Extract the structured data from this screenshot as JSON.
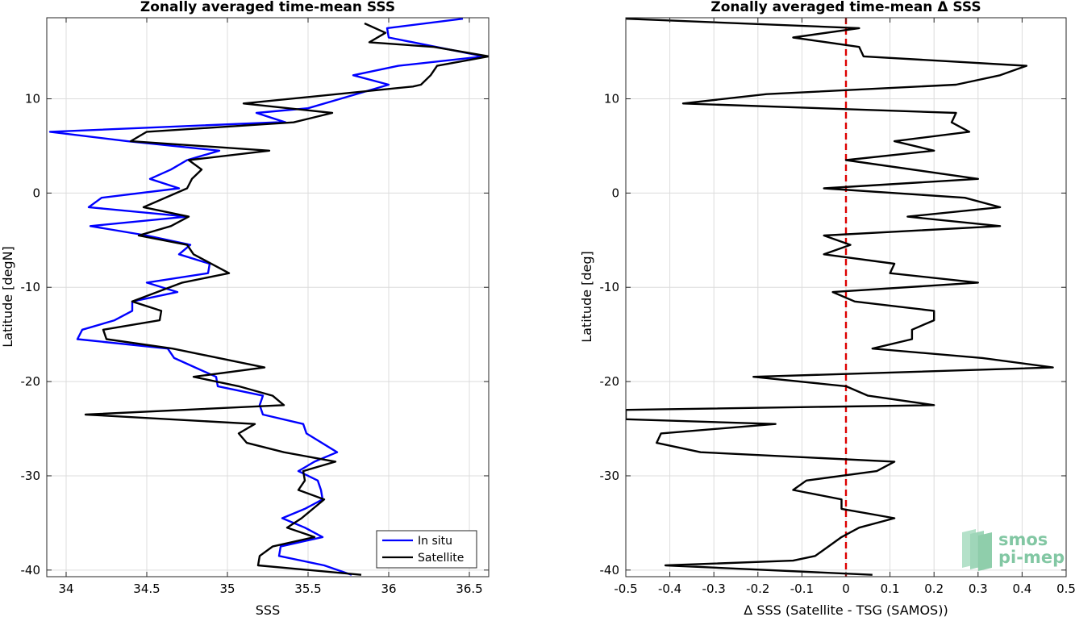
{
  "chart_data": [
    {
      "type": "line",
      "title": "Zonally averaged time-mean SSS",
      "xlabel": "SSS",
      "ylabel": "Latitude [degN]",
      "xlim": [
        33.88,
        36.62
      ],
      "ylim": [
        -40.7,
        18.6
      ],
      "xticks": [
        34,
        34.5,
        35,
        35.5,
        36,
        36.5
      ],
      "xtick_labels": [
        "34",
        "34.5",
        "35",
        "35.5",
        "36",
        "36.5"
      ],
      "yticks": [
        10,
        0,
        -10,
        -20,
        -30,
        -40
      ],
      "ytick_labels": [
        "10",
        "0",
        "-10",
        "-20",
        "-30",
        "-40"
      ],
      "grid": true,
      "legend_position": "bottom-right",
      "series": [
        {
          "name": "In situ",
          "color": "#0000ff",
          "points": [
            [
              36.46,
              18.5
            ],
            [
              35.99,
              17.5
            ],
            [
              36.0,
              16.5
            ],
            [
              36.59,
              14.5
            ],
            [
              36.06,
              13.5
            ],
            [
              35.78,
              12.5
            ],
            [
              36.0,
              11.5
            ],
            [
              35.5,
              9.0
            ],
            [
              35.18,
              8.5
            ],
            [
              35.36,
              7.5
            ],
            [
              35.3,
              7.5
            ],
            [
              33.9,
              6.5
            ],
            [
              34.38,
              5.5
            ],
            [
              34.95,
              4.5
            ],
            [
              34.75,
              3.5
            ],
            [
              34.65,
              2.5
            ],
            [
              34.52,
              1.5
            ],
            [
              34.7,
              0.5
            ],
            [
              34.22,
              -0.5
            ],
            [
              34.14,
              -1.5
            ],
            [
              34.75,
              -2.5
            ],
            [
              34.15,
              -3.5
            ],
            [
              34.5,
              -4.5
            ],
            [
              34.77,
              -5.5
            ],
            [
              34.7,
              -6.5
            ],
            [
              34.89,
              -7.5
            ],
            [
              34.88,
              -8.5
            ],
            [
              34.5,
              -9.5
            ],
            [
              34.69,
              -10.5
            ],
            [
              34.41,
              -11.5
            ],
            [
              34.41,
              -12.5
            ],
            [
              34.3,
              -13.5
            ],
            [
              34.1,
              -14.5
            ],
            [
              34.07,
              -15.5
            ],
            [
              34.63,
              -16.5
            ],
            [
              34.67,
              -17.5
            ],
            [
              34.8,
              -18.5
            ],
            [
              34.93,
              -19.5
            ],
            [
              34.94,
              -20.5
            ],
            [
              35.22,
              -21.5
            ],
            [
              35.2,
              -22.5
            ],
            [
              35.22,
              -23.5
            ],
            [
              35.47,
              -24.5
            ],
            [
              35.49,
              -25.5
            ],
            [
              35.68,
              -27.5
            ],
            [
              35.54,
              -28.5
            ],
            [
              35.44,
              -29.5
            ],
            [
              35.56,
              -30.5
            ],
            [
              35.58,
              -31.5
            ],
            [
              35.59,
              -32.5
            ],
            [
              35.48,
              -33.5
            ],
            [
              35.34,
              -34.5
            ],
            [
              35.48,
              -35.5
            ],
            [
              35.59,
              -36.5
            ],
            [
              35.33,
              -37.5
            ],
            [
              35.32,
              -38.5
            ],
            [
              35.6,
              -39.5
            ],
            [
              35.77,
              -40.5
            ]
          ]
        },
        {
          "name": "Satellite",
          "color": "#000000",
          "points": [
            [
              35.85,
              18.0
            ],
            [
              35.98,
              17.0
            ],
            [
              35.88,
              16.0
            ],
            [
              36.28,
              15.5
            ],
            [
              36.62,
              14.5
            ],
            [
              36.3,
              13.5
            ],
            [
              36.26,
              12.5
            ],
            [
              36.2,
              11.5
            ],
            [
              36.15,
              11.3
            ],
            [
              35.1,
              9.5
            ],
            [
              35.65,
              8.5
            ],
            [
              35.41,
              7.5
            ],
            [
              34.5,
              6.5
            ],
            [
              34.4,
              5.5
            ],
            [
              35.26,
              4.5
            ],
            [
              34.76,
              3.5
            ],
            [
              34.84,
              2.5
            ],
            [
              34.78,
              1.5
            ],
            [
              34.75,
              0.5
            ],
            [
              34.48,
              -1.5
            ],
            [
              34.76,
              -2.5
            ],
            [
              34.65,
              -3.5
            ],
            [
              34.45,
              -4.5
            ],
            [
              34.75,
              -5.5
            ],
            [
              34.79,
              -6.5
            ],
            [
              35.01,
              -8.5
            ],
            [
              34.72,
              -9.5
            ],
            [
              34.41,
              -11.5
            ],
            [
              34.59,
              -12.5
            ],
            [
              34.58,
              -13.5
            ],
            [
              34.23,
              -14.5
            ],
            [
              34.25,
              -15.5
            ],
            [
              34.66,
              -16.5
            ],
            [
              35.23,
              -18.5
            ],
            [
              34.79,
              -19.5
            ],
            [
              35.07,
              -20.5
            ],
            [
              35.28,
              -21.5
            ],
            [
              35.35,
              -22.5
            ],
            [
              34.12,
              -23.5
            ],
            [
              35.17,
              -24.5
            ],
            [
              35.07,
              -25.5
            ],
            [
              35.12,
              -26.5
            ],
            [
              35.35,
              -27.5
            ],
            [
              35.67,
              -28.5
            ],
            [
              35.47,
              -29.5
            ],
            [
              35.48,
              -30.5
            ],
            [
              35.44,
              -31.5
            ],
            [
              35.6,
              -32.5
            ],
            [
              35.46,
              -34.5
            ],
            [
              35.37,
              -35.5
            ],
            [
              35.54,
              -36.5
            ],
            [
              35.28,
              -37.5
            ],
            [
              35.2,
              -38.5
            ],
            [
              35.19,
              -39.5
            ],
            [
              35.83,
              -40.5
            ]
          ]
        }
      ]
    },
    {
      "type": "line",
      "title": "Zonally averaged time-mean Δ SSS",
      "xlabel": "Δ SSS (Satellite - TSG (SAMOS))",
      "ylabel": "Latitude [deg]",
      "xlim": [
        -0.5,
        0.5
      ],
      "ylim": [
        -40.7,
        18.6
      ],
      "xticks": [
        -0.5,
        -0.4,
        -0.3,
        -0.2,
        -0.1,
        0,
        0.1,
        0.2,
        0.3,
        0.4,
        0.5
      ],
      "xtick_labels": [
        "-0.5",
        "-0.4",
        "-0.3",
        "-0.2",
        "-0.1",
        "0",
        "0.1",
        "0.2",
        "0.3",
        "0.4",
        "0.5"
      ],
      "yticks": [
        10,
        0,
        -10,
        -20,
        -30,
        -40
      ],
      "ytick_labels": [
        "10",
        "0",
        "-10",
        "-20",
        "-30",
        "-40"
      ],
      "grid": true,
      "reference_line": {
        "x": 0,
        "color": "#dd0000",
        "style": "dashed"
      },
      "series": [
        {
          "color": "#000000",
          "points": [
            [
              -0.5,
              18.5
            ],
            [
              0.03,
              17.5
            ],
            [
              -0.12,
              16.5
            ],
            [
              0.03,
              15.5
            ],
            [
              0.04,
              14.5
            ],
            [
              0.41,
              13.5
            ],
            [
              0.35,
              12.5
            ],
            [
              0.25,
              11.5
            ],
            [
              -0.18,
              10.5
            ],
            [
              -0.37,
              9.5
            ],
            [
              0.25,
              8.5
            ],
            [
              0.24,
              7.5
            ],
            [
              0.28,
              6.5
            ],
            [
              0.11,
              5.5
            ],
            [
              0.2,
              4.5
            ],
            [
              0.0,
              3.5
            ],
            [
              0.3,
              1.5
            ],
            [
              -0.05,
              0.5
            ],
            [
              0.27,
              -0.5
            ],
            [
              0.35,
              -1.5
            ],
            [
              0.14,
              -2.5
            ],
            [
              0.35,
              -3.5
            ],
            [
              -0.05,
              -4.5
            ],
            [
              0.01,
              -5.5
            ],
            [
              -0.05,
              -6.5
            ],
            [
              0.11,
              -7.5
            ],
            [
              0.1,
              -8.5
            ],
            [
              0.3,
              -9.5
            ],
            [
              -0.03,
              -10.5
            ],
            [
              0.02,
              -11.5
            ],
            [
              0.2,
              -12.5
            ],
            [
              0.2,
              -13.5
            ],
            [
              0.15,
              -14.5
            ],
            [
              0.15,
              -15.5
            ],
            [
              0.06,
              -16.5
            ],
            [
              0.31,
              -17.5
            ],
            [
              0.47,
              -18.5
            ],
            [
              -0.21,
              -19.5
            ],
            [
              0.0,
              -20.5
            ],
            [
              0.05,
              -21.5
            ],
            [
              0.2,
              -22.5
            ],
            [
              -0.5,
              -23.0
            ],
            [
              -0.5,
              -24.0
            ],
            [
              -0.16,
              -24.5
            ],
            [
              -0.42,
              -25.5
            ],
            [
              -0.43,
              -26.5
            ],
            [
              -0.33,
              -27.5
            ],
            [
              0.11,
              -28.5
            ],
            [
              0.07,
              -29.5
            ],
            [
              -0.09,
              -30.5
            ],
            [
              -0.12,
              -31.5
            ],
            [
              -0.01,
              -32.5
            ],
            [
              -0.01,
              -33.5
            ],
            [
              0.11,
              -34.5
            ],
            [
              0.03,
              -35.5
            ],
            [
              -0.01,
              -36.5
            ],
            [
              -0.04,
              -37.5
            ],
            [
              -0.07,
              -38.5
            ],
            [
              -0.12,
              -39.0
            ],
            [
              -0.41,
              -39.5
            ],
            [
              0.06,
              -40.5
            ]
          ]
        }
      ]
    }
  ],
  "watermark": {
    "line1": "smos",
    "line2": "pi-mep",
    "color": "#6dbe93"
  }
}
